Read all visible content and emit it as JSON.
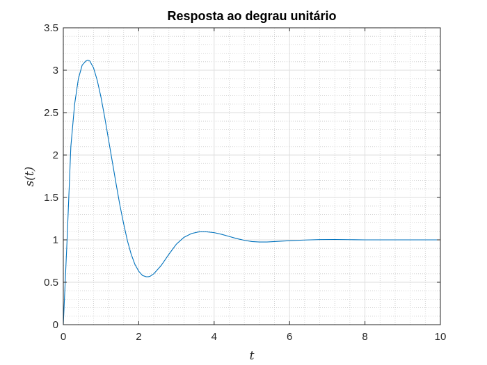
{
  "chart_data": {
    "type": "line",
    "title": "Resposta ao degrau unitário",
    "xlabel": "t",
    "ylabel": "s(t)",
    "xlim": [
      0,
      10
    ],
    "ylim": [
      0,
      3.5
    ],
    "xticks": [
      0,
      2,
      4,
      6,
      8,
      10
    ],
    "xtick_labels": [
      "0",
      "2",
      "4",
      "6",
      "8",
      "10"
    ],
    "yticks": [
      0,
      0.5,
      1,
      1.5,
      2,
      2.5,
      3,
      3.5
    ],
    "ytick_labels": [
      "0",
      "0.5",
      "1",
      "1.5",
      "2",
      "2.5",
      "3",
      "3.5"
    ],
    "grid": true,
    "minor_grid": true,
    "series": [
      {
        "name": "s(t)",
        "color": "#0072bd",
        "x": [
          0,
          0.1,
          0.2,
          0.3,
          0.4,
          0.5,
          0.6,
          0.65,
          0.7,
          0.8,
          0.9,
          1.0,
          1.1,
          1.2,
          1.3,
          1.4,
          1.5,
          1.6,
          1.7,
          1.8,
          1.9,
          2.0,
          2.1,
          2.2,
          2.25,
          2.3,
          2.4,
          2.6,
          2.8,
          3.0,
          3.2,
          3.4,
          3.6,
          3.8,
          4.0,
          4.2,
          4.4,
          4.6,
          4.8,
          5.0,
          5.2,
          5.4,
          5.6,
          5.8,
          6.0,
          6.4,
          6.8,
          7.2,
          7.6,
          8.0,
          8.5,
          9.0,
          9.5,
          10.0
        ],
        "y": [
          0,
          1.0,
          2.1,
          2.6,
          2.9,
          3.06,
          3.11,
          3.12,
          3.11,
          3.03,
          2.88,
          2.68,
          2.44,
          2.18,
          1.92,
          1.66,
          1.41,
          1.19,
          0.99,
          0.83,
          0.71,
          0.63,
          0.58,
          0.565,
          0.565,
          0.57,
          0.6,
          0.7,
          0.83,
          0.95,
          1.03,
          1.075,
          1.095,
          1.095,
          1.085,
          1.065,
          1.04,
          1.015,
          0.995,
          0.98,
          0.975,
          0.975,
          0.98,
          0.985,
          0.99,
          0.998,
          1.003,
          1.004,
          1.002,
          1.0,
          1.0,
          1.0,
          1.0,
          1.0
        ]
      }
    ]
  }
}
